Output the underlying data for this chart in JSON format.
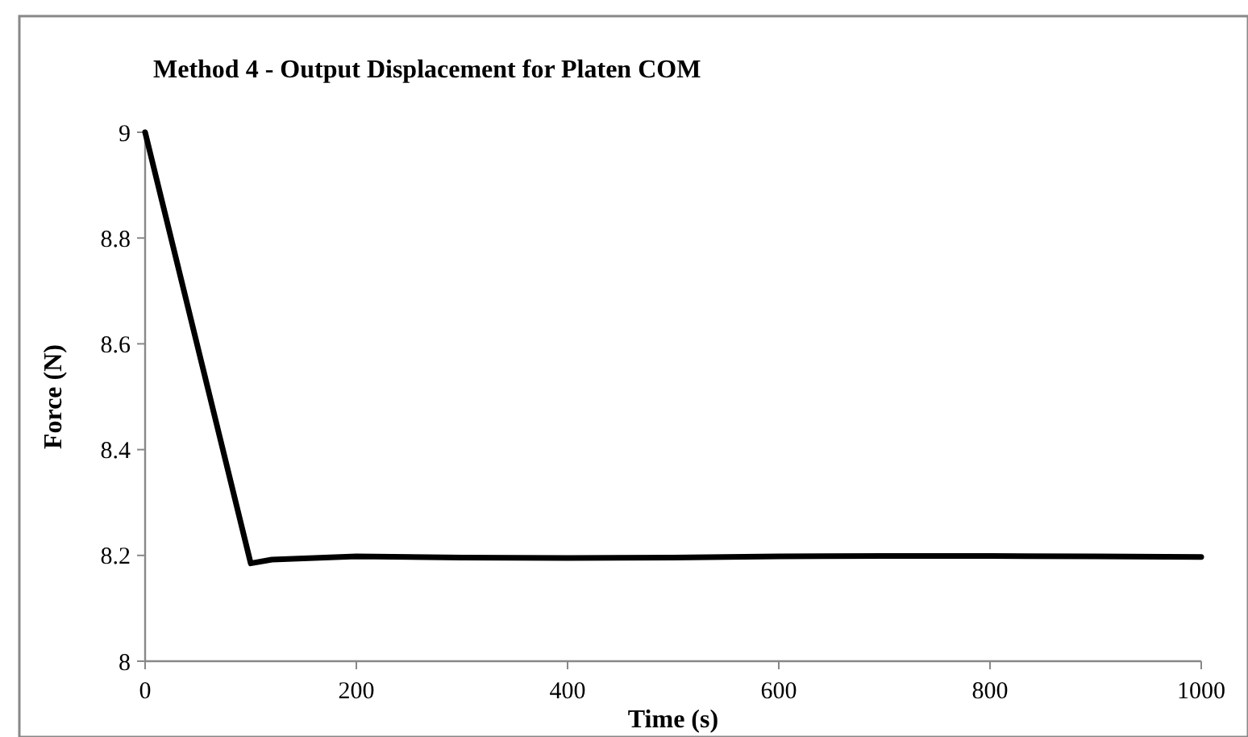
{
  "chart_data": {
    "type": "line",
    "title": "Method 4 - Output Displacement for Platen COM",
    "xlabel": "Time (s)",
    "ylabel": "Force (N)",
    "x": [
      0,
      100,
      120,
      200,
      300,
      400,
      500,
      600,
      700,
      800,
      900,
      1000
    ],
    "series": [
      {
        "color": "#000000",
        "values": [
          9,
          8.185,
          8.192,
          8.198,
          8.196,
          8.195,
          8.196,
          8.198,
          8.199,
          8.199,
          8.198,
          8.197
        ]
      }
    ],
    "xlim": [
      0,
      1000
    ],
    "xticks": [
      0,
      200,
      400,
      600,
      800,
      1000
    ],
    "ylim": [
      8,
      9
    ],
    "yticks": [
      8,
      8.2,
      8.4,
      8.6,
      8.8,
      9
    ],
    "grid": false,
    "marker": "none",
    "line_style": "solid"
  }
}
